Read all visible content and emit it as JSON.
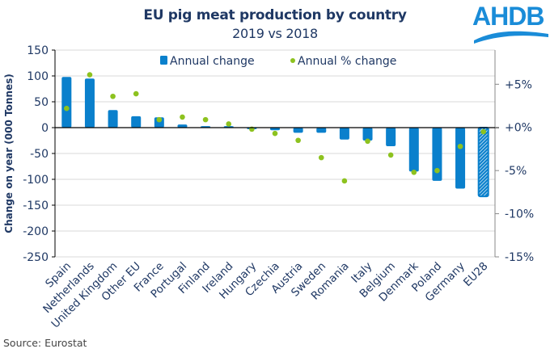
{
  "header": {
    "title": "EU pig meat production by country",
    "subtitle": "2019 vs 2018",
    "logo_text": "AHDB"
  },
  "footer": {
    "source": "Source: Eurostat"
  },
  "colors": {
    "bar": "#0a80cc",
    "dot": "#8dc21f",
    "text": "#1f3864",
    "gridline": "#d9d9d9",
    "logo": "#1a8cd8"
  },
  "chart_data": {
    "type": "bar",
    "title": "EU pig meat production by country",
    "subtitle": "2019 vs 2018",
    "xlabel": "",
    "ylabel": "Change on year (000 Tonnes)",
    "ylim": [
      -250,
      150
    ],
    "yticks": [
      150,
      100,
      50,
      0,
      -50,
      -100,
      -150,
      -200,
      -250
    ],
    "y2lim": [
      -15,
      8.96
    ],
    "y2ticks": [
      5,
      0,
      -5,
      -10,
      -15
    ],
    "y2ticklabels": [
      "+5%",
      "+0%",
      "-5%",
      "-10%",
      "-15%"
    ],
    "grid": true,
    "legend_position": "top-center",
    "categories": [
      "Spain",
      "Netherlands",
      "United Kingdom",
      "Other EU",
      "France",
      "Portugal",
      "Finland",
      "Ireland",
      "Hungary",
      "Czechia",
      "Austria",
      "Sweden",
      "Romania",
      "Italy",
      "Belgium",
      "Denmark",
      "Poland",
      "Germany",
      "EU28"
    ],
    "series": [
      {
        "name": "Annual change",
        "type": "bar",
        "axis": "left",
        "values": [
          98,
          95,
          34,
          22,
          20,
          6,
          3,
          3,
          -3,
          -5,
          -10,
          -10,
          -23,
          -25,
          -36,
          -85,
          -103,
          -118,
          -133
        ],
        "hatched_categories": [
          "EU28"
        ]
      },
      {
        "name": "Annual % change",
        "type": "scatter",
        "axis": "right",
        "values": [
          2.2,
          6.1,
          3.6,
          3.9,
          0.9,
          1.2,
          0.9,
          0.4,
          -0.2,
          -0.7,
          -1.5,
          -3.5,
          -6.2,
          -1.6,
          -3.2,
          -5.2,
          -5.0,
          -2.2,
          -0.5
        ]
      }
    ]
  }
}
